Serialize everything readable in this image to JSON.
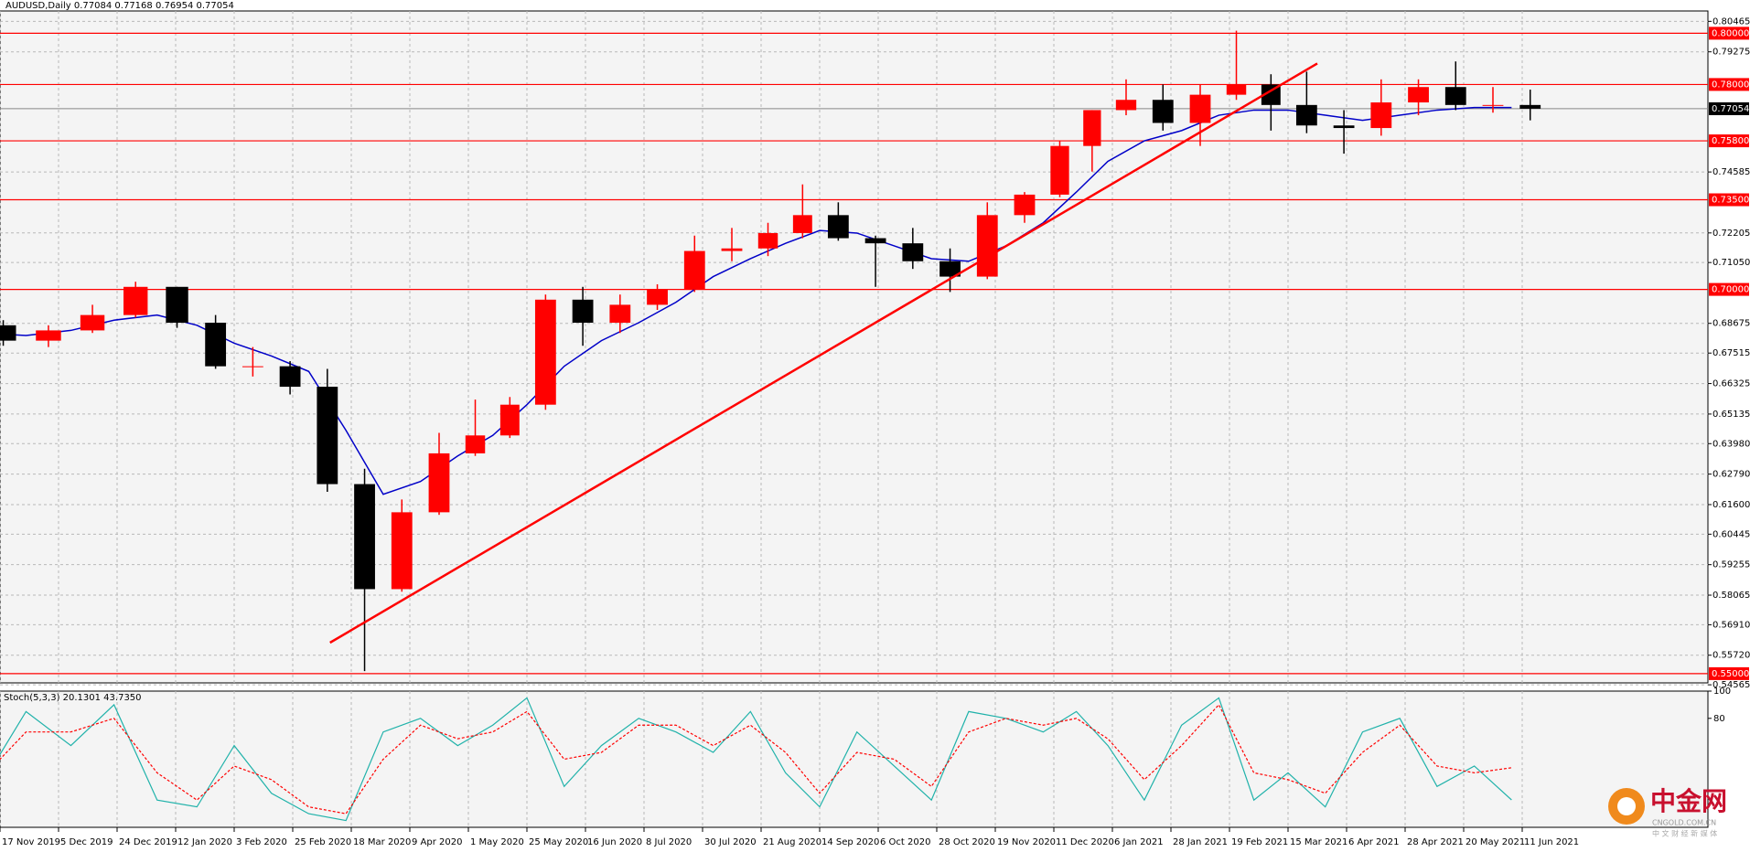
{
  "chart_data": [
    {
      "type": "candlestick",
      "title": "AUDUSD,Daily  0.77084 0.77168 0.76954 0.77054",
      "x": [
        "2019-11-11",
        "2019-11-25",
        "2019-12-09",
        "2019-12-23",
        "2020-01-06",
        "2020-01-20",
        "2020-02-03",
        "2020-02-17",
        "2020-03-02",
        "2020-03-16",
        "2020-03-30",
        "2020-04-13",
        "2020-04-27",
        "2020-05-11",
        "2020-05-25",
        "2020-06-08",
        "2020-06-22",
        "2020-07-06",
        "2020-07-20",
        "2020-08-03",
        "2020-08-17",
        "2020-08-31",
        "2020-09-14",
        "2020-09-28",
        "2020-10-12",
        "2020-10-26",
        "2020-11-09",
        "2020-11-23",
        "2020-12-07",
        "2020-12-21",
        "2021-01-04",
        "2021-01-18",
        "2021-02-01",
        "2021-02-15",
        "2021-03-01",
        "2021-03-15",
        "2021-03-29",
        "2021-04-12",
        "2021-04-26",
        "2021-05-10",
        "2021-05-24",
        "2021-06-07"
      ],
      "open": [
        0.686,
        0.68,
        0.684,
        0.69,
        0.701,
        0.687,
        0.67,
        0.67,
        0.662,
        0.624,
        0.583,
        0.613,
        0.636,
        0.643,
        0.655,
        0.696,
        0.687,
        0.694,
        0.7,
        0.715,
        0.716,
        0.722,
        0.729,
        0.72,
        0.718,
        0.711,
        0.705,
        0.729,
        0.737,
        0.756,
        0.77,
        0.774,
        0.765,
        0.776,
        0.78,
        0.772,
        0.764,
        0.763,
        0.773,
        0.779,
        0.772,
        0.772
      ],
      "high": [
        0.688,
        0.686,
        0.694,
        0.703,
        0.701,
        0.69,
        0.6775,
        0.672,
        0.669,
        0.63,
        0.618,
        0.644,
        0.657,
        0.658,
        0.698,
        0.701,
        0.698,
        0.702,
        0.721,
        0.724,
        0.726,
        0.741,
        0.734,
        0.721,
        0.724,
        0.716,
        0.734,
        0.738,
        0.758,
        0.77,
        0.782,
        0.78,
        0.78,
        0.801,
        0.784,
        0.785,
        0.77,
        0.782,
        0.782,
        0.789,
        0.779,
        0.778
      ],
      "low": [
        0.678,
        0.6775,
        0.683,
        0.689,
        0.685,
        0.669,
        0.666,
        0.659,
        0.621,
        0.551,
        0.582,
        0.612,
        0.635,
        0.642,
        0.653,
        0.678,
        0.683,
        0.692,
        0.699,
        0.711,
        0.713,
        0.72,
        0.719,
        0.701,
        0.708,
        0.699,
        0.704,
        0.726,
        0.736,
        0.746,
        0.768,
        0.762,
        0.756,
        0.774,
        0.762,
        0.761,
        0.753,
        0.76,
        0.768,
        0.77,
        0.769,
        0.766
      ],
      "close": [
        0.68,
        0.684,
        0.69,
        0.701,
        0.687,
        0.67,
        0.67,
        0.662,
        0.624,
        0.583,
        0.613,
        0.636,
        0.643,
        0.655,
        0.696,
        0.687,
        0.694,
        0.7,
        0.715,
        0.716,
        0.722,
        0.729,
        0.72,
        0.718,
        0.711,
        0.705,
        0.729,
        0.737,
        0.756,
        0.77,
        0.774,
        0.765,
        0.776,
        0.78,
        0.772,
        0.764,
        0.763,
        0.773,
        0.779,
        0.772,
        0.772,
        0.77054
      ],
      "up_color": "#ff0000",
      "down_color": "#000000",
      "overlay": {
        "color": "#0000c8",
        "values": [
          0.683,
          0.682,
          0.684,
          0.688,
          0.69,
          0.686,
          0.679,
          0.674,
          0.668,
          0.645,
          0.62,
          0.625,
          0.635,
          0.643,
          0.655,
          0.67,
          0.68,
          0.687,
          0.695,
          0.705,
          0.712,
          0.718,
          0.723,
          0.722,
          0.717,
          0.712,
          0.711,
          0.717,
          0.726,
          0.738,
          0.75,
          0.758,
          0.762,
          0.768,
          0.77,
          0.77,
          0.768,
          0.766,
          0.768,
          0.77,
          0.771,
          0.771
        ]
      },
      "trendline": {
        "color": "#ff0000",
        "x": [
          "2020-03-10",
          "2021-03-26"
        ],
        "y": [
          0.5621,
          0.7882
        ]
      },
      "levels": [
        {
          "value": 0.8,
          "label": "0.80000"
        },
        {
          "value": 0.78,
          "label": "0.78000"
        },
        {
          "value": 0.758,
          "label": "0.75800"
        },
        {
          "value": 0.735,
          "label": "0.73500"
        },
        {
          "value": 0.7,
          "label": "0.70000"
        },
        {
          "value": 0.55,
          "label": "0.55000"
        }
      ],
      "level_color": "#ff0000",
      "last_price": 0.77054,
      "ylim": [
        0.5464,
        0.8087
      ],
      "yticks": [
        0.80465,
        0.79275,
        0.74585,
        0.72205,
        {
          "value": 0.7105,
          "label": "0.71050"
        },
        0.68675,
        0.67515,
        0.66325,
        0.65135,
        {
          "value": 0.6398,
          "label": "0.63980"
        },
        {
          "value": 0.6279,
          "label": "0.62790"
        },
        {
          "value": 0.616,
          "label": "0.61600"
        },
        0.60445,
        0.59255,
        0.58065,
        {
          "value": 0.5691,
          "label": "0.56910"
        },
        {
          "value": 0.5572,
          "label": "0.55720"
        },
        0.54565
      ],
      "grid": true
    },
    {
      "type": "line",
      "title": "Stoch(5,3,3) 20.1301 43.7350",
      "x": [
        "2019-11-11",
        "2019-11-25",
        "2019-12-09",
        "2019-12-23",
        "2020-01-06",
        "2020-01-20",
        "2020-02-03",
        "2020-02-17",
        "2020-03-02",
        "2020-03-16",
        "2020-03-30",
        "2020-04-13",
        "2020-04-27",
        "2020-05-11",
        "2020-05-25",
        "2020-06-08",
        "2020-06-22",
        "2020-07-06",
        "2020-07-20",
        "2020-08-03",
        "2020-08-17",
        "2020-08-31",
        "2020-09-14",
        "2020-09-28",
        "2020-10-12",
        "2020-10-26",
        "2020-11-09",
        "2020-11-23",
        "2020-12-07",
        "2020-12-21",
        "2021-01-04",
        "2021-01-18",
        "2021-02-01",
        "2021-02-15",
        "2021-03-01",
        "2021-03-15",
        "2021-03-29",
        "2021-04-12",
        "2021-04-26",
        "2021-05-10",
        "2021-05-24",
        "2021-06-07"
      ],
      "series": [
        {
          "color": "#20b2aa",
          "values": [
            30,
            85,
            60,
            90,
            20,
            15,
            60,
            25,
            10,
            5,
            70,
            80,
            60,
            75,
            95,
            30,
            60,
            80,
            70,
            55,
            85,
            40,
            15,
            70,
            45,
            20,
            85,
            80,
            70,
            85,
            60,
            20,
            75,
            95,
            20,
            40,
            15,
            70,
            80,
            30,
            45,
            20.1301
          ]
        },
        {
          "color": "#ff0000",
          "dashed": true,
          "values": [
            35,
            70,
            70,
            80,
            40,
            20,
            45,
            35,
            15,
            10,
            50,
            75,
            65,
            70,
            85,
            50,
            55,
            75,
            75,
            60,
            75,
            55,
            25,
            55,
            50,
            30,
            70,
            80,
            75,
            80,
            65,
            35,
            60,
            90,
            40,
            35,
            25,
            55,
            75,
            45,
            40,
            43.735
          ]
        }
      ],
      "ylim": [
        0,
        100
      ],
      "yticks": [
        100,
        80
      ],
      "xticks": [
        {
          "value": "2019-11-17",
          "label": "17 Nov 2019"
        },
        {
          "value": "2019-12-05",
          "label": "5 Dec 2019"
        },
        {
          "value": "2019-12-24",
          "label": "24 Dec 2019"
        },
        {
          "value": "2020-01-12",
          "label": "12 Jan 2020"
        },
        {
          "value": "2020-02-03",
          "label": "3 Feb 2020"
        },
        {
          "value": "2020-02-25",
          "label": "25 Feb 2020"
        },
        {
          "value": "2020-03-18",
          "label": "18 Mar 2020"
        },
        {
          "value": "2020-04-09",
          "label": "9 Apr 2020"
        },
        {
          "value": "2020-05-01",
          "label": "1 May 2020"
        },
        {
          "value": "2020-05-25",
          "label": "25 May 2020"
        },
        {
          "value": "2020-06-16",
          "label": "16 Jun 2020"
        },
        {
          "value": "2020-07-08",
          "label": "8 Jul 2020"
        },
        {
          "value": "2020-07-30",
          "label": "30 Jul 2020"
        },
        {
          "value": "2020-08-21",
          "label": "21 Aug 2020"
        },
        {
          "value": "2020-09-14",
          "label": "14 Sep 2020"
        },
        {
          "value": "2020-10-06",
          "label": "6 Oct 2020"
        },
        {
          "value": "2020-10-28",
          "label": "28 Oct 2020"
        },
        {
          "value": "2020-11-19",
          "label": "19 Nov 2020"
        },
        {
          "value": "2020-12-11",
          "label": "11 Dec 2020"
        },
        {
          "value": "2021-01-06",
          "label": "6 Jan 2021"
        },
        {
          "value": "2021-01-28",
          "label": "28 Jan 2021"
        },
        {
          "value": "2021-02-19",
          "label": "19 Feb 2021"
        },
        {
          "value": "2021-03-15",
          "label": "15 Mar 2021"
        },
        {
          "value": "2021-04-06",
          "label": "6 Apr 2021"
        },
        {
          "value": "2021-04-28",
          "label": "28 Apr 2021"
        },
        {
          "value": "2021-05-20",
          "label": "20 May 2021"
        },
        {
          "value": "2021-06-11",
          "label": "11 Jun 2021"
        }
      ],
      "grid": true
    }
  ],
  "watermark": {
    "title": "中金网",
    "url": "CNGOLD.COM.CN",
    "tagline": "中 文 财 经 新 媒 体"
  }
}
